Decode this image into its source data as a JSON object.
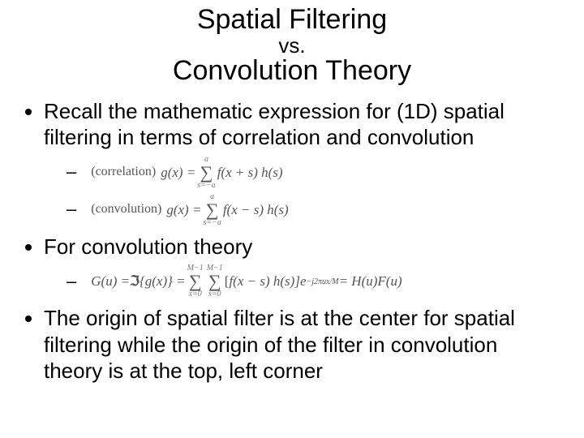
{
  "colors": {
    "background": "#ffffff",
    "text": "#000000",
    "math_text": "#555555"
  },
  "title": {
    "line1": "Spatial Filtering",
    "vs": "vs.",
    "line2": "Convolution Theory",
    "fontsize_main": 34,
    "fontsize_vs": 26
  },
  "bullets": {
    "b1": "Recall the mathematic expression for (1D) spatial filtering in terms of correlation and convolution",
    "b2": "For convolution theory",
    "b3": "The origin of spatial filter is at the center for spatial filtering while the origin of the filter in convolution theory is at the top, left corner",
    "fontsize": 26
  },
  "math": {
    "corr_label": "(correlation)",
    "conv_label": "(convolution)",
    "g_eq": "g(x) = ",
    "sum1_top": "a",
    "sum1_bot": "s=−a",
    "corr_term": "f(x + s) h(s)",
    "conv_term": "f(x − s) h(s)",
    "G_lead": "G(u) = ",
    "frak_I": "ℑ",
    "G_mid": "{g(x)} = ",
    "sumM_top": "M−1",
    "sumM_bot_x": "x=0",
    "sumM_bot_s": "s=0",
    "G_bracket": "[",
    "G_inner": "f(x − s) h(s)]",
    "G_exp": "e",
    "G_exp_sup": "−j2πux/M",
    "G_tail": " = H(u)F(u)",
    "fontsize": 17
  }
}
